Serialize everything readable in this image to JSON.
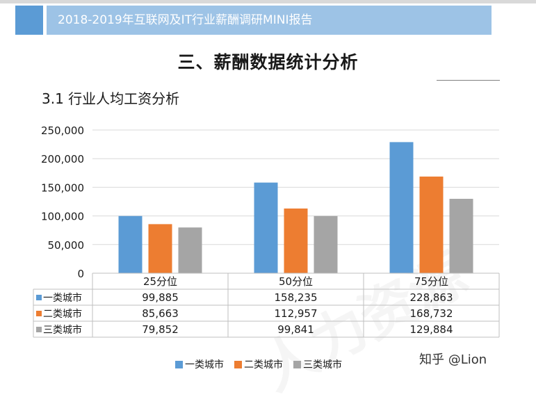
{
  "header": {
    "banner_text": "2018-2019年互联网及IT行业薪酬调研MINI报告"
  },
  "section": {
    "title": "三、薪酬数据统计分析",
    "subtitle": "3.1 行业人均工资分析"
  },
  "brand": {
    "text": "知乎 @Lion"
  },
  "chart_data": {
    "type": "bar",
    "title": "",
    "xlabel": "",
    "ylabel": "",
    "categories": [
      "25分位",
      "50分位",
      "75分位"
    ],
    "series": [
      {
        "name": "一类城市",
        "values": [
          99885,
          158235,
          228863
        ],
        "labels": [
          "99,885",
          "158,235",
          "228,863"
        ],
        "color": "#5b9bd5"
      },
      {
        "name": "二类城市",
        "values": [
          85663,
          112957,
          168732
        ],
        "labels": [
          "85,663",
          "112,957",
          "168,732"
        ],
        "color": "#ed7d31"
      },
      {
        "name": "三类城市",
        "values": [
          79852,
          99841,
          129884
        ],
        "labels": [
          "79,852",
          "99,841",
          "129,884"
        ],
        "color": "#a5a5a5"
      }
    ],
    "ylim": [
      0,
      250000
    ],
    "yticks": [
      0,
      50000,
      100000,
      150000,
      200000,
      250000
    ],
    "ytick_labels": [
      "0",
      "50,000",
      "100,000",
      "150,000",
      "200,000",
      "250,000"
    ],
    "grid": true,
    "legend": "bottom",
    "data_table": true
  }
}
